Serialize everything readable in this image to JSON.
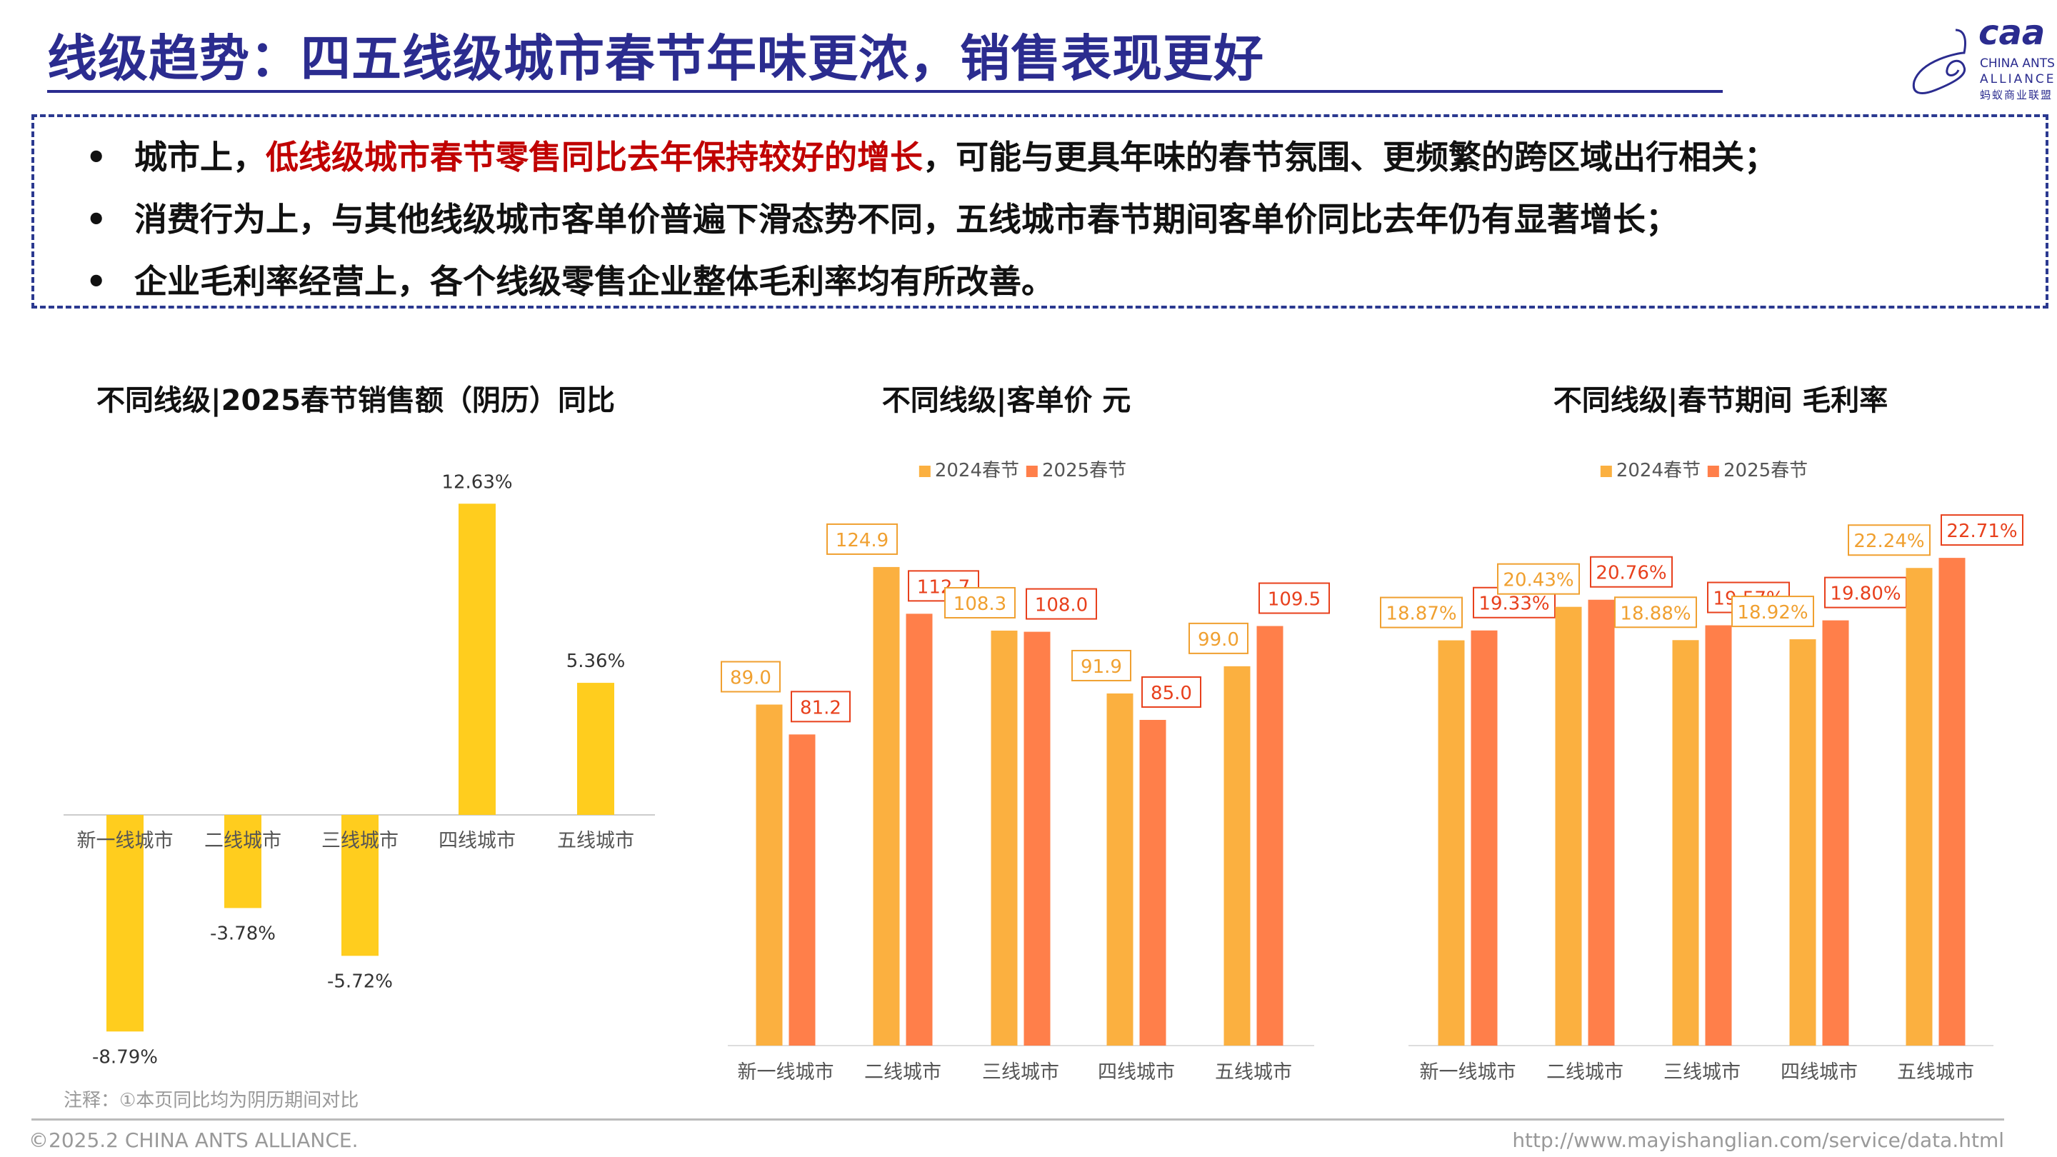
{
  "header": {
    "title": "线级趋势：四五线级城市春节年味更浓，销售表现更好"
  },
  "logo": {
    "mark": "caa",
    "en1": "CHINA ANTS",
    "en2": "ALLIANCE",
    "cn": "蚂蚁商业联盟"
  },
  "summary": {
    "bullet_symbol": "•",
    "items": [
      {
        "pre": "城市上，",
        "highlight": "低线级城市春节零售同比去年保持较好的增长",
        "post": "，可能与更具年味的春节氛围、更频繁的跨区域出行相关；"
      },
      {
        "pre": "消费行为上，与其他线级城市客单价普遍下滑态势不同，五线城市春节期间客单价同比去年仍有显著增长；",
        "highlight": "",
        "post": ""
      },
      {
        "pre": "企业毛利率经营上，各个线级零售企业整体毛利率均有所改善。",
        "highlight": "",
        "post": ""
      }
    ]
  },
  "colors": {
    "title": "#2B2C8F",
    "highlight": "#C00000",
    "bar_yoy": "#FFCD1E",
    "s2024": "#FBB040",
    "s2025": "#FF7F4A",
    "label_2025": "#E8401C"
  },
  "chart_data": [
    {
      "type": "bar",
      "title": "不同线级|2025春节销售额（阴历）同比",
      "categories": [
        "新一线城市",
        "二线城市",
        "三线城市",
        "四线城市",
        "五线城市"
      ],
      "values": [
        -8.79,
        -3.78,
        -5.72,
        12.63,
        5.36
      ],
      "labels": [
        "-8.79%",
        "-3.78%",
        "-5.72%",
        "12.63%",
        "5.36%"
      ],
      "unit": "%",
      "grid": false
    },
    {
      "type": "bar",
      "title": "不同线级|客单价 元",
      "categories": [
        "新一线城市",
        "二线城市",
        "三线城市",
        "四线城市",
        "五线城市"
      ],
      "series": [
        {
          "name": "2024春节",
          "values": [
            89.0,
            124.9,
            108.3,
            91.9,
            99.0
          ],
          "labels": [
            "89.0",
            "124.9",
            "108.3",
            "91.9",
            "99.0"
          ]
        },
        {
          "name": "2025春节",
          "values": [
            81.2,
            112.7,
            108.0,
            85.0,
            109.5
          ],
          "labels": [
            "81.2",
            "112.7",
            "108.0",
            "85.0",
            "109.5"
          ]
        }
      ],
      "legend": "top",
      "grid": false
    },
    {
      "type": "bar",
      "title": "不同线级|春节期间 毛利率",
      "categories": [
        "新一线城市",
        "二线城市",
        "三线城市",
        "四线城市",
        "五线城市"
      ],
      "series": [
        {
          "name": "2024春节",
          "values": [
            18.87,
            20.43,
            18.88,
            18.92,
            22.24
          ],
          "labels": [
            "18.87%",
            "20.43%",
            "18.88%",
            "18.92%",
            "22.24%"
          ]
        },
        {
          "name": "2025春节",
          "values": [
            19.33,
            20.76,
            19.57,
            19.8,
            22.71
          ],
          "labels": [
            "19.33%",
            "20.76%",
            "19.57%",
            "19.80%",
            "22.71%"
          ]
        }
      ],
      "legend": "top",
      "grid": false
    }
  ],
  "footer": {
    "note": "注释：①本页同比均为阴历期间对比",
    "copyright": "©2025.2 CHINA ANTS ALLIANCE.",
    "url": "http://www.mayishanglian.com/service/data.html"
  }
}
